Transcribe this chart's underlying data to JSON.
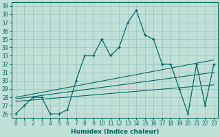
{
  "xlabel": "Humidex (Indice chaleur)",
  "x": [
    0,
    1,
    2,
    3,
    4,
    5,
    6,
    7,
    8,
    9,
    10,
    11,
    12,
    13,
    14,
    15,
    16,
    17,
    18,
    19,
    20,
    21,
    22,
    23
  ],
  "y_main": [
    26,
    27,
    28,
    28,
    26,
    26,
    26.5,
    30,
    33,
    33,
    35,
    33,
    34,
    37,
    38.5,
    35.5,
    35,
    32,
    32,
    29,
    26,
    32,
    27,
    32
  ],
  "trend_lines": [
    [
      27.5,
      29.5
    ],
    [
      27.8,
      31.0
    ],
    [
      28.0,
      32.5
    ]
  ],
  "bg_color": "#c0e0d8",
  "grid_color": "#98c4bc",
  "line_color": "#006868",
  "ylim": [
    25.5,
    39.5
  ],
  "yticks": [
    26,
    27,
    28,
    29,
    30,
    31,
    32,
    33,
    34,
    35,
    36,
    37,
    38,
    39
  ],
  "xticks": [
    0,
    1,
    2,
    3,
    4,
    5,
    6,
    7,
    8,
    9,
    10,
    11,
    12,
    13,
    14,
    15,
    16,
    17,
    18,
    19,
    20,
    21,
    22,
    23
  ],
  "tick_fontsize": 5.5,
  "label_fontsize": 6.5
}
